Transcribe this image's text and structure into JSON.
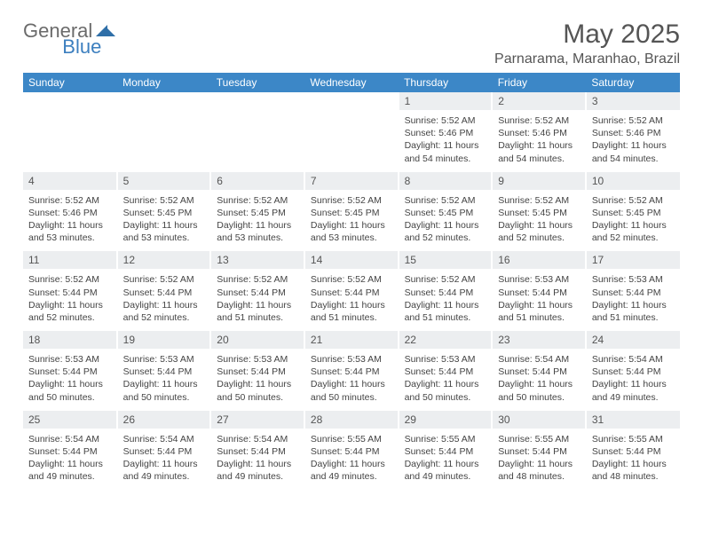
{
  "logo": {
    "general": "General",
    "blue": "Blue"
  },
  "title": "May 2025",
  "location": "Parnarama, Maranhao, Brazil",
  "colors": {
    "header_bg": "#3c87c7",
    "header_fg": "#ffffff",
    "daynum_bg": "#eceef0",
    "text": "#444444",
    "logo_gray": "#6b6b6b",
    "logo_blue": "#3c7fbf",
    "page_bg": "#ffffff"
  },
  "weekdays": [
    "Sunday",
    "Monday",
    "Tuesday",
    "Wednesday",
    "Thursday",
    "Friday",
    "Saturday"
  ],
  "weeks": [
    {
      "nums": [
        "",
        "",
        "",
        "",
        "1",
        "2",
        "3"
      ],
      "cells": [
        null,
        null,
        null,
        null,
        {
          "sunrise": "5:52 AM",
          "sunset": "5:46 PM",
          "daylight": "11 hours and 54 minutes."
        },
        {
          "sunrise": "5:52 AM",
          "sunset": "5:46 PM",
          "daylight": "11 hours and 54 minutes."
        },
        {
          "sunrise": "5:52 AM",
          "sunset": "5:46 PM",
          "daylight": "11 hours and 54 minutes."
        }
      ]
    },
    {
      "nums": [
        "4",
        "5",
        "6",
        "7",
        "8",
        "9",
        "10"
      ],
      "cells": [
        {
          "sunrise": "5:52 AM",
          "sunset": "5:46 PM",
          "daylight": "11 hours and 53 minutes."
        },
        {
          "sunrise": "5:52 AM",
          "sunset": "5:45 PM",
          "daylight": "11 hours and 53 minutes."
        },
        {
          "sunrise": "5:52 AM",
          "sunset": "5:45 PM",
          "daylight": "11 hours and 53 minutes."
        },
        {
          "sunrise": "5:52 AM",
          "sunset": "5:45 PM",
          "daylight": "11 hours and 53 minutes."
        },
        {
          "sunrise": "5:52 AM",
          "sunset": "5:45 PM",
          "daylight": "11 hours and 52 minutes."
        },
        {
          "sunrise": "5:52 AM",
          "sunset": "5:45 PM",
          "daylight": "11 hours and 52 minutes."
        },
        {
          "sunrise": "5:52 AM",
          "sunset": "5:45 PM",
          "daylight": "11 hours and 52 minutes."
        }
      ]
    },
    {
      "nums": [
        "11",
        "12",
        "13",
        "14",
        "15",
        "16",
        "17"
      ],
      "cells": [
        {
          "sunrise": "5:52 AM",
          "sunset": "5:44 PM",
          "daylight": "11 hours and 52 minutes."
        },
        {
          "sunrise": "5:52 AM",
          "sunset": "5:44 PM",
          "daylight": "11 hours and 52 minutes."
        },
        {
          "sunrise": "5:52 AM",
          "sunset": "5:44 PM",
          "daylight": "11 hours and 51 minutes."
        },
        {
          "sunrise": "5:52 AM",
          "sunset": "5:44 PM",
          "daylight": "11 hours and 51 minutes."
        },
        {
          "sunrise": "5:52 AM",
          "sunset": "5:44 PM",
          "daylight": "11 hours and 51 minutes."
        },
        {
          "sunrise": "5:53 AM",
          "sunset": "5:44 PM",
          "daylight": "11 hours and 51 minutes."
        },
        {
          "sunrise": "5:53 AM",
          "sunset": "5:44 PM",
          "daylight": "11 hours and 51 minutes."
        }
      ]
    },
    {
      "nums": [
        "18",
        "19",
        "20",
        "21",
        "22",
        "23",
        "24"
      ],
      "cells": [
        {
          "sunrise": "5:53 AM",
          "sunset": "5:44 PM",
          "daylight": "11 hours and 50 minutes."
        },
        {
          "sunrise": "5:53 AM",
          "sunset": "5:44 PM",
          "daylight": "11 hours and 50 minutes."
        },
        {
          "sunrise": "5:53 AM",
          "sunset": "5:44 PM",
          "daylight": "11 hours and 50 minutes."
        },
        {
          "sunrise": "5:53 AM",
          "sunset": "5:44 PM",
          "daylight": "11 hours and 50 minutes."
        },
        {
          "sunrise": "5:53 AM",
          "sunset": "5:44 PM",
          "daylight": "11 hours and 50 minutes."
        },
        {
          "sunrise": "5:54 AM",
          "sunset": "5:44 PM",
          "daylight": "11 hours and 50 minutes."
        },
        {
          "sunrise": "5:54 AM",
          "sunset": "5:44 PM",
          "daylight": "11 hours and 49 minutes."
        }
      ]
    },
    {
      "nums": [
        "25",
        "26",
        "27",
        "28",
        "29",
        "30",
        "31"
      ],
      "cells": [
        {
          "sunrise": "5:54 AM",
          "sunset": "5:44 PM",
          "daylight": "11 hours and 49 minutes."
        },
        {
          "sunrise": "5:54 AM",
          "sunset": "5:44 PM",
          "daylight": "11 hours and 49 minutes."
        },
        {
          "sunrise": "5:54 AM",
          "sunset": "5:44 PM",
          "daylight": "11 hours and 49 minutes."
        },
        {
          "sunrise": "5:55 AM",
          "sunset": "5:44 PM",
          "daylight": "11 hours and 49 minutes."
        },
        {
          "sunrise": "5:55 AM",
          "sunset": "5:44 PM",
          "daylight": "11 hours and 49 minutes."
        },
        {
          "sunrise": "5:55 AM",
          "sunset": "5:44 PM",
          "daylight": "11 hours and 48 minutes."
        },
        {
          "sunrise": "5:55 AM",
          "sunset": "5:44 PM",
          "daylight": "11 hours and 48 minutes."
        }
      ]
    }
  ],
  "labels": {
    "sunrise": "Sunrise: ",
    "sunset": "Sunset: ",
    "daylight": "Daylight: "
  }
}
